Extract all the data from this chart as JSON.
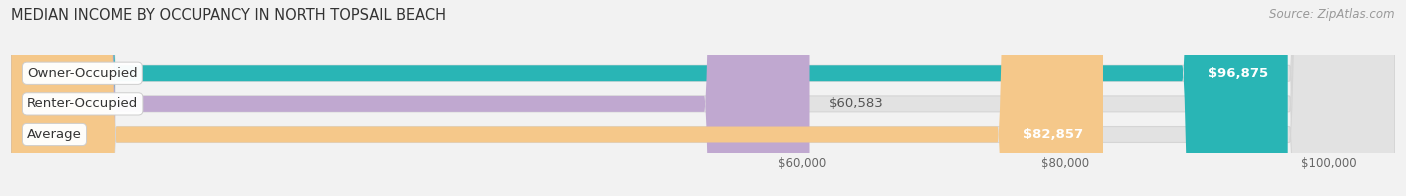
{
  "title": "MEDIAN INCOME BY OCCUPANCY IN NORTH TOPSAIL BEACH",
  "source": "Source: ZipAtlas.com",
  "categories": [
    "Owner-Occupied",
    "Renter-Occupied",
    "Average"
  ],
  "values": [
    96875,
    60583,
    82857
  ],
  "bar_colors": [
    "#29b5b5",
    "#c0a8d0",
    "#f5c88a"
  ],
  "value_labels": [
    "$96,875",
    "$60,583",
    "$82,857"
  ],
  "xlim": [
    0,
    105000
  ],
  "xticks": [
    60000,
    80000,
    100000
  ],
  "xtick_labels": [
    "$60,000",
    "$80,000",
    "$100,000"
  ],
  "bar_height": 0.52,
  "background_color": "#f2f2f2",
  "bar_bg_color": "#e2e2e2",
  "bar_bg_edge_color": "#d5d5d5",
  "grid_color": "#d0d0d0",
  "title_fontsize": 10.5,
  "source_fontsize": 8.5,
  "label_fontsize": 9.5,
  "value_fontsize": 9.5,
  "value_label_color_inside": "#ffffff",
  "value_label_color_outside": "#555555",
  "label_box_facecolor": "#ffffff",
  "label_box_edgecolor": "#cccccc",
  "rounding_size": 8000
}
